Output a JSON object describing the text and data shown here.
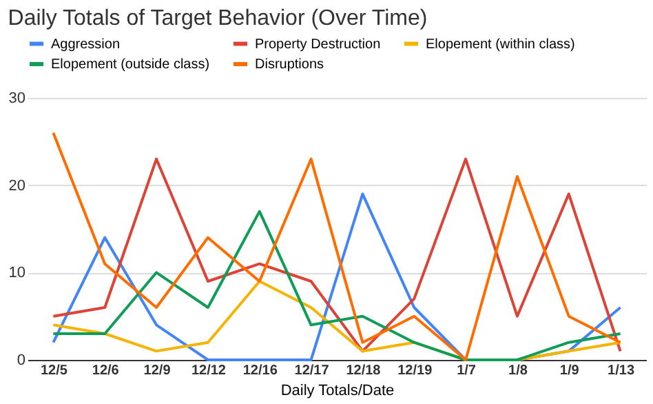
{
  "chart_data": {
    "type": "line",
    "title": "Daily Totals of Target Behavior (Over Time)",
    "xlabel": "Daily Totals/Date",
    "categories": [
      "12/5",
      "12/6",
      "12/9",
      "12/12",
      "12/16",
      "12/17",
      "12/18",
      "12/19",
      "1/7",
      "1/8",
      "1/9",
      "1/13"
    ],
    "series": [
      {
        "name": "Aggression",
        "color": "#4285f4",
        "values": [
          2,
          14,
          4,
          0,
          0,
          0,
          19,
          6,
          0,
          0,
          1,
          6
        ]
      },
      {
        "name": "Property Destruction",
        "color": "#db4437",
        "values": [
          5,
          6,
          23,
          9,
          11,
          9,
          1,
          7,
          23,
          5,
          19,
          1
        ]
      },
      {
        "name": "Elopement (within class)",
        "color": "#f4b400",
        "values": [
          4,
          3,
          1,
          2,
          9,
          6,
          1,
          2,
          0,
          0,
          1,
          2
        ]
      },
      {
        "name": "Elopement (outside class)",
        "color": "#0f9d58",
        "values": [
          3,
          3,
          10,
          6,
          17,
          4,
          5,
          2,
          0,
          0,
          2,
          3
        ]
      },
      {
        "name": "Disruptions",
        "color": "#ff6d01",
        "values": [
          26,
          11,
          6,
          14,
          9,
          23,
          2,
          5,
          0,
          21,
          5,
          2
        ]
      }
    ],
    "ylim": [
      0,
      30
    ],
    "yticks": [
      0,
      10,
      20,
      30
    ],
    "grid": "y",
    "legend": "top",
    "marker": "none",
    "line_style": "solid"
  }
}
